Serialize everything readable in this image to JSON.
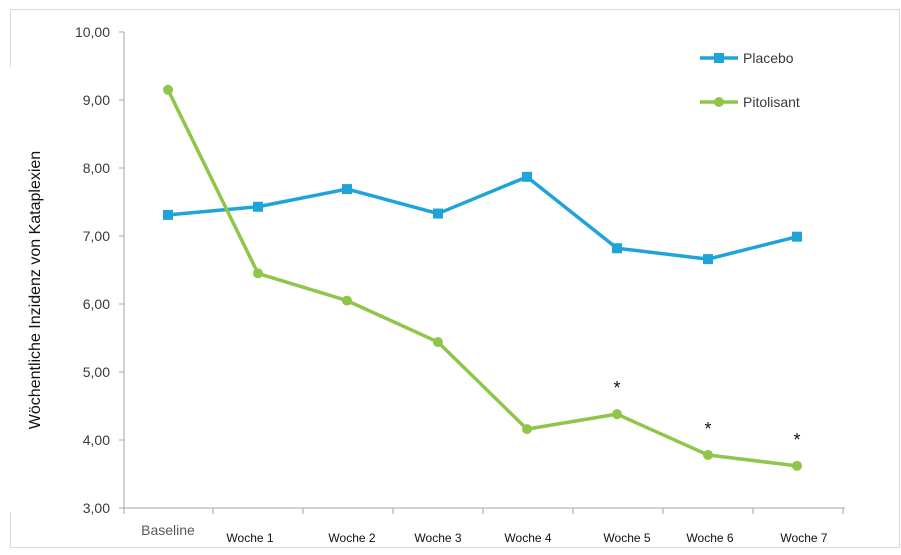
{
  "chart_data": {
    "type": "line",
    "title": "",
    "xlabel": "",
    "ylabel": "Wöchentliche Inzidenz von Kataplexien",
    "ylim": [
      3,
      10
    ],
    "yticks": [
      "3,00",
      "4,00",
      "5,00",
      "6,00",
      "7,00",
      "8,00",
      "9,00",
      "10,00"
    ],
    "grid": false,
    "legend_position": "top-right",
    "categories": [
      "Baseline",
      "Woche 1",
      "Woche 2",
      "Woche 3",
      "Woche 4",
      "Woche 5",
      "Woche 6",
      "Woche 7"
    ],
    "series": [
      {
        "name": "Placebo",
        "color": "#1fa4d9",
        "marker": "square",
        "values": [
          7.31,
          7.43,
          7.69,
          7.33,
          7.87,
          6.82,
          6.66,
          6.99
        ]
      },
      {
        "name": "Pitolisant",
        "color": "#8fc64a",
        "marker": "circle",
        "values": [
          9.15,
          6.45,
          6.05,
          5.44,
          4.16,
          4.38,
          3.78,
          3.62
        ]
      }
    ],
    "annotations": [
      {
        "text": "*",
        "category": "Woche 5",
        "series": "Pitolisant"
      },
      {
        "text": "*",
        "category": "Woche 6",
        "series": "Pitolisant"
      },
      {
        "text": "*",
        "category": "Woche 7",
        "series": "Pitolisant"
      }
    ]
  }
}
